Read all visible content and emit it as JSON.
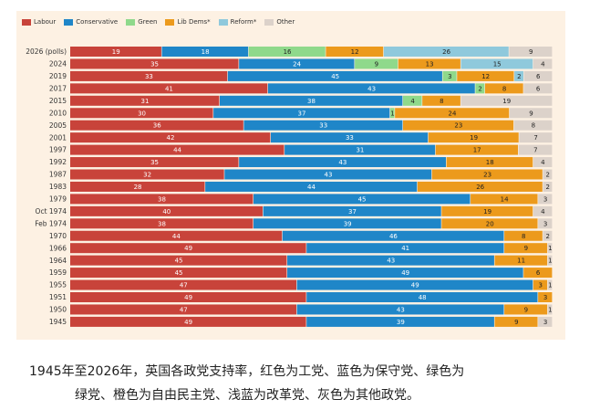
{
  "chart_data": {
    "type": "bar",
    "orientation": "horizontal",
    "stacked": true,
    "legend_placement": "top-left",
    "legend": [
      {
        "name": "Labour",
        "color": "#c8433a"
      },
      {
        "name": "Conservative",
        "color": "#1f86c8"
      },
      {
        "name": "Green",
        "color": "#8fd98b"
      },
      {
        "name": "Lib Dems*",
        "color": "#ec9a1c"
      },
      {
        "name": "Reform*",
        "color": "#8fc9dc"
      },
      {
        "name": "Other",
        "color": "#dcd2ca"
      }
    ],
    "categories": [
      "2026 (polls)",
      "2024",
      "2019",
      "2017",
      "2015",
      "2010",
      "2005",
      "2001",
      "1997",
      "1992",
      "1987",
      "1983",
      "1979",
      "Oct 1974",
      "Feb 1974",
      "1970",
      "1966",
      "1964",
      "1959",
      "1955",
      "1951",
      "1950",
      "1945"
    ],
    "series": [
      {
        "name": "Labour",
        "values": [
          19,
          35,
          33,
          41,
          31,
          30,
          36,
          42,
          44,
          35,
          32,
          28,
          38,
          40,
          38,
          44,
          49,
          45,
          45,
          47,
          49,
          47,
          49
        ]
      },
      {
        "name": "Conservative",
        "values": [
          18,
          24,
          45,
          43,
          38,
          37,
          33,
          33,
          31,
          43,
          43,
          44,
          45,
          37,
          39,
          46,
          41,
          43,
          49,
          49,
          48,
          43,
          39
        ]
      },
      {
        "name": "Green",
        "values": [
          16,
          9,
          3,
          2,
          4,
          1,
          0,
          0,
          0,
          0,
          0,
          0,
          0,
          0,
          0,
          0,
          0,
          0,
          0,
          0,
          0,
          0,
          0
        ]
      },
      {
        "name": "Lib Dems*",
        "values": [
          12,
          13,
          12,
          8,
          8,
          24,
          23,
          19,
          17,
          18,
          23,
          26,
          14,
          19,
          20,
          8,
          9,
          11,
          6,
          3,
          3,
          9,
          9
        ]
      },
      {
        "name": "Reform*",
        "values": [
          0,
          0,
          0,
          0,
          0,
          0,
          0,
          0,
          0,
          0,
          0,
          0,
          0,
          0,
          0,
          0,
          0,
          0,
          0,
          0,
          0,
          0,
          0
        ]
      },
      {
        "name": "Other",
        "values": [
          9,
          4,
          6,
          6,
          19,
          9,
          8,
          7,
          7,
          4,
          2,
          2,
          3,
          4,
          3,
          2,
          1,
          1,
          0,
          1,
          0,
          1,
          3
        ]
      }
    ],
    "reform_overrides": {
      "2026 (polls)": 26,
      "2024": 15,
      "2019": 2
    },
    "reform_row_indices": [
      0,
      1,
      2
    ]
  },
  "caption": {
    "line1": "1945年至2026年，英国各政党支持率，红色为工党、蓝色为保守党、绿色为",
    "line2": "绿党、橙色为自由民主党、浅蓝为改革党、灰色为其他政党。"
  }
}
